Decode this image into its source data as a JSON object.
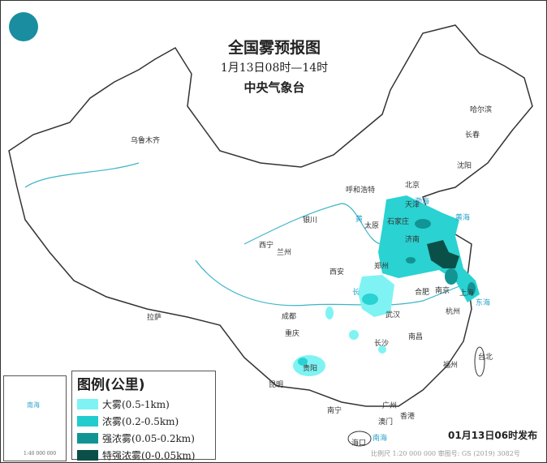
{
  "header": {
    "title": "全国雾预报图",
    "time_range": "1月13日08时—14时",
    "agency": "中央气象台"
  },
  "legend": {
    "title": "图例(公里)",
    "items": [
      {
        "label": "大雾(0.5-1km)",
        "color": "#7ff3f3"
      },
      {
        "label": "浓雾(0.2-0.5km)",
        "color": "#22cccc"
      },
      {
        "label": "强浓雾(0.05-0.2km)",
        "color": "#129494"
      },
      {
        "label": "特强浓雾(0-0.05km)",
        "color": "#0b5048"
      }
    ]
  },
  "footer": {
    "issued": "01月13日06时发布",
    "scale_note": "比例尺 1:20 000 000   审图号: GS (2019) 3082号"
  },
  "inset": {
    "sea_label": "南海",
    "scale": "1:40 000 000"
  },
  "map": {
    "cities": [
      "乌鲁木齐",
      "哈尔滨",
      "长春",
      "沈阳",
      "北京",
      "天津",
      "呼和浩特",
      "石家庄",
      "太原",
      "济南",
      "银川",
      "西宁",
      "兰州",
      "郑州",
      "西安",
      "合肥",
      "南京",
      "上海",
      "武汉",
      "杭州",
      "拉萨",
      "成都",
      "重庆",
      "长沙",
      "南昌",
      "福州",
      "台北",
      "贵阳",
      "昆明",
      "南宁",
      "广州",
      "香港",
      "澳门",
      "海口"
    ],
    "sea_labels": [
      "渤海",
      "黄海",
      "东海",
      "南海"
    ],
    "river_labels": [
      "黄",
      "长"
    ]
  }
}
